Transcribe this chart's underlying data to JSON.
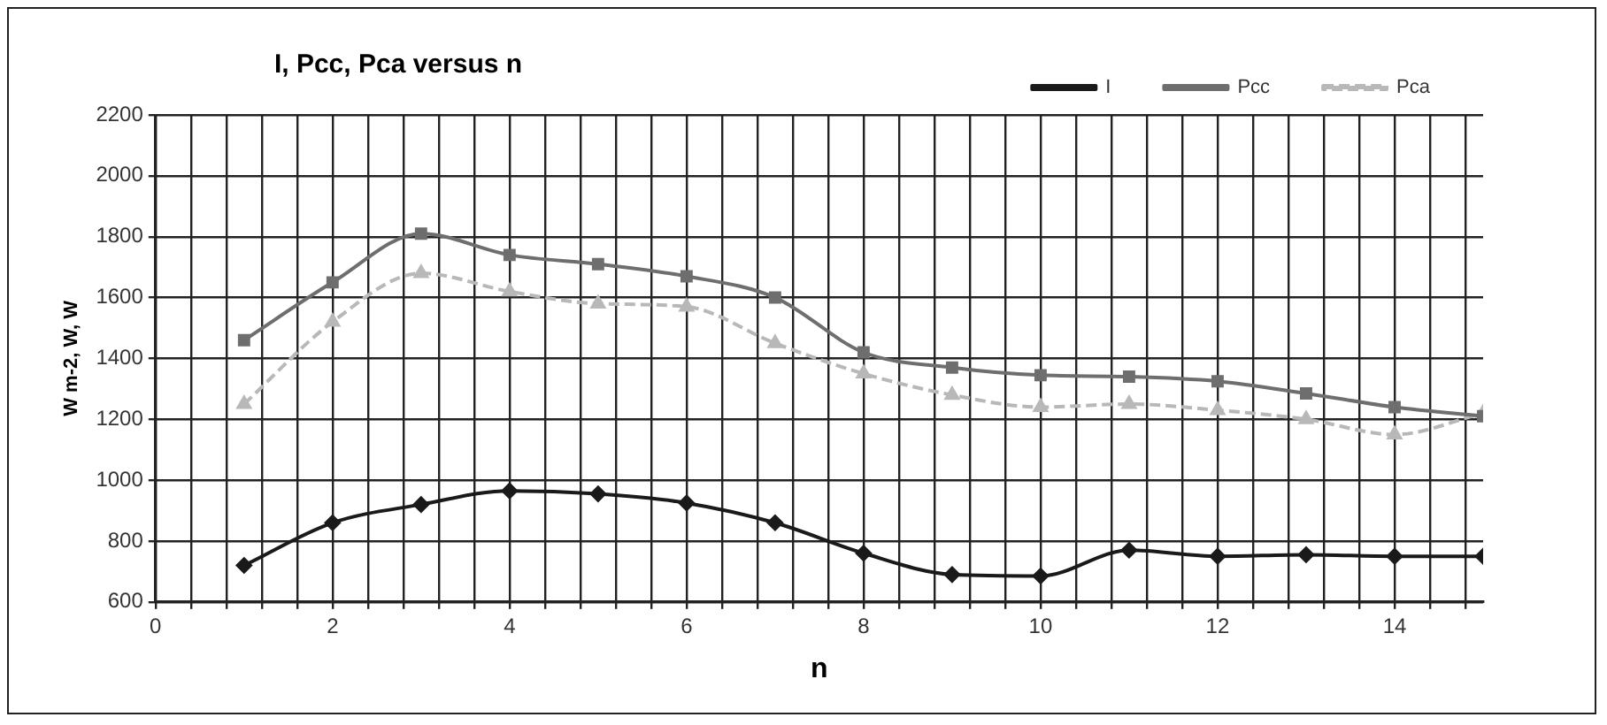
{
  "chart_data": {
    "type": "line",
    "title": "I, Pcc, Pca versus n",
    "xlabel": "n",
    "ylabel": "W m-2, W, W",
    "x": [
      1,
      2,
      3,
      4,
      5,
      6,
      7,
      8,
      9,
      10,
      11,
      12,
      13,
      14,
      15
    ],
    "series": [
      {
        "name": "I",
        "color": "#1a1a1a",
        "marker": "diamond",
        "line_style": "solid",
        "values": [
          720,
          860,
          920,
          965,
          955,
          925,
          860,
          760,
          690,
          685,
          770,
          750,
          755,
          750,
          750
        ]
      },
      {
        "name": "Pcc",
        "color": "#6e6e6e",
        "marker": "square",
        "line_style": "solid",
        "values": [
          1460,
          1650,
          1810,
          1740,
          1710,
          1670,
          1600,
          1420,
          1370,
          1345,
          1340,
          1325,
          1285,
          1240,
          1210
        ]
      },
      {
        "name": "Pca",
        "color": "#b8b8b8",
        "marker": "triangle",
        "line_style": "dashed",
        "values": [
          1250,
          1520,
          1680,
          1620,
          1580,
          1570,
          1450,
          1350,
          1280,
          1240,
          1250,
          1230,
          1200,
          1150,
          1220
        ]
      }
    ],
    "xlim": [
      0,
      15
    ],
    "xticks": [
      0,
      {
        "value": 0.4,
        "label": null
      },
      {
        "value": 0.8,
        "label": null
      },
      {
        "value": 1.2,
        "label": null
      },
      {
        "value": 1.6,
        "label": null
      },
      2,
      {
        "value": 2.4,
        "label": null
      },
      {
        "value": 2.8,
        "label": null
      },
      {
        "value": 3.2,
        "label": null
      },
      {
        "value": 3.6,
        "label": null
      },
      4,
      {
        "value": 4.4,
        "label": null
      },
      {
        "value": 4.8,
        "label": null
      },
      {
        "value": 5.2,
        "label": null
      },
      {
        "value": 5.6,
        "label": null
      },
      6,
      {
        "value": 6.4,
        "label": null
      },
      {
        "value": 6.8,
        "label": null
      },
      {
        "value": 7.2,
        "label": null
      },
      {
        "value": 7.6,
        "label": null
      },
      8,
      {
        "value": 8.4,
        "label": null
      },
      {
        "value": 8.8,
        "label": null
      },
      {
        "value": 9.2,
        "label": null
      },
      {
        "value": 9.6,
        "label": null
      },
      10,
      {
        "value": 10.4,
        "label": null
      },
      {
        "value": 10.8,
        "label": null
      },
      {
        "value": 11.2,
        "label": null
      },
      {
        "value": 11.6,
        "label": null
      },
      12,
      {
        "value": 12.4,
        "label": null
      },
      {
        "value": 12.8,
        "label": null
      },
      {
        "value": 13.2,
        "label": null
      },
      {
        "value": 13.6,
        "label": null
      },
      14,
      {
        "value": 14.4,
        "label": null
      },
      {
        "value": 14.8,
        "label": null
      }
    ],
    "ylim": [
      600,
      2200
    ],
    "yticks": [
      600,
      800,
      1000,
      1200,
      1400,
      1600,
      1800,
      2000,
      2200
    ],
    "grid": true,
    "legend": "top right"
  }
}
